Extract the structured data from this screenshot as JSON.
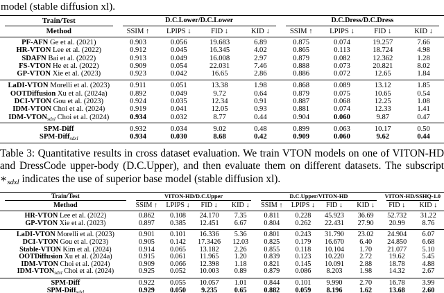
{
  "page": {
    "top_text": "model (stable diffusion xl)."
  },
  "caption": {
    "prefix": "Table 3: Quantitative results in cross dataset evaluation. We train VTON models on one of VITON-HD and DressCode upper-body (D.C.Upper), and then evaluate them on different datasets. The subscript ∗",
    "sub": "sdxl",
    "suffix": " indicates the use of superior base model (stable diffusion xl)."
  },
  "tables": [
    {
      "name": "same-dataset-evaluation",
      "train_test_label": "Train/Test",
      "method_label": "Method",
      "method_col_width": "26.5%",
      "groups": [
        {
          "label": "D.C.Lower/D.C.Lower",
          "metrics": [
            "SSIM ↑",
            "LPIPS ↓",
            "FID ↓",
            "KID ↓"
          ]
        },
        {
          "label": "D.C.Dress/D.C.Dress",
          "metrics": [
            "SSIM ↑",
            "LPIPS ↓",
            "FID ↓",
            "KID ↓"
          ]
        }
      ],
      "blocks": [
        {
          "rows": [
            {
              "method": "PF-AFN",
              "cite": "Ge et al. (2021)",
              "values": [
                "0.903",
                "0.056",
                "19.683",
                "6.89",
                "0.875",
                "0.074",
                "19.257",
                "7.66"
              ]
            },
            {
              "method": "HR-VTON",
              "cite": "Lee et al. (2022)",
              "values": [
                "0.912",
                "0.045",
                "16.345",
                "4.02",
                "0.865",
                "0.113",
                "18.724",
                "4.98"
              ]
            },
            {
              "method": "SDAFN",
              "cite": "Bai et al. (2022)",
              "values": [
                "0.913",
                "0.049",
                "16.008",
                "2.97",
                "0.879",
                "0.082",
                "12.362",
                "1.28"
              ]
            },
            {
              "method": "FS-VTON",
              "cite": "He et al. (2022)",
              "values": [
                "0.909",
                "0.054",
                "22.031",
                "7.46",
                "0.888",
                "0.073",
                "20.821",
                "8.02"
              ]
            },
            {
              "method": "GP-VTON",
              "cite": "Xie et al. (2023)",
              "values": [
                "0.923",
                "0.042",
                "16.65",
                "2.86",
                "0.886",
                "0.072",
                "12.65",
                "1.84"
              ]
            }
          ]
        },
        {
          "rows": [
            {
              "method": "LaDI-VTON",
              "cite": "Morelli et al. (2023)",
              "values": [
                "0.911",
                "0.051",
                "13.38",
                "1.98",
                "0.868",
                "0.089",
                "13.12",
                "1.85"
              ]
            },
            {
              "method": "OOTDiffusion",
              "cite": "Xu et al. (2024a)",
              "values": [
                "0.892",
                "0.049",
                "9.72",
                "0.64",
                "0.879",
                "0.075",
                "10.65",
                "0.54"
              ]
            },
            {
              "method": "DCI-VTON",
              "cite": "Gou et al. (2023)",
              "values": [
                "0.924",
                "0.035",
                "12.34",
                "0.91",
                "0.887",
                "0.068",
                "12.25",
                "1.08"
              ]
            },
            {
              "method": "IDM-VTON",
              "cite": "Choi et al. (2024)",
              "values": [
                "0.919",
                "0.041",
                "12.05",
                "0.93",
                "0.881",
                "0.074",
                "12.33",
                "1.41"
              ]
            },
            {
              "method": "IDM-VTON",
              "sub": "sdxl",
              "cite": "Choi et al. (2024)",
              "values": [
                "0.934",
                "0.032",
                "8.77",
                "0.44",
                "0.904",
                "0.060",
                "9.87",
                "0.47"
              ],
              "bold": [
                0,
                5
              ]
            }
          ]
        },
        {
          "rows": [
            {
              "method": "SPM-Diff",
              "cite": "",
              "values": [
                "0.932",
                "0.034",
                "9.02",
                "0.48",
                "0.899",
                "0.063",
                "10.17",
                "0.50"
              ]
            },
            {
              "method": "SPM-Diff",
              "sub": "sdxl",
              "cite": "",
              "values": [
                "0.934",
                "0.030",
                "8.68",
                "0.42",
                "0.909",
                "0.060",
                "9.62",
                "0.44"
              ],
              "bold": [
                0,
                1,
                2,
                3,
                4,
                5,
                6,
                7
              ]
            }
          ]
        }
      ]
    },
    {
      "name": "cross-dataset-evaluation",
      "train_test_label": "Train/Test",
      "method_label": "Method",
      "method_col_width": "29.5%",
      "groups": [
        {
          "label": "VITON-HD/D.C.Upper",
          "metrics": [
            "SSIM ↑",
            "LPIPS ↓",
            "FID ↓",
            "KID ↓"
          ]
        },
        {
          "label": "D.C.Upper/VITON-HD",
          "metrics": [
            "SSIM ↑",
            "LPIPS ↓",
            "FID ↓",
            "KID ↓"
          ]
        },
        {
          "label": "VITON-HD/SSHQ-1.0",
          "metrics": [
            "FID ↓",
            "KID ↓"
          ]
        }
      ],
      "blocks": [
        {
          "rows": [
            {
              "method": "HR-VTON",
              "cite": "Lee et al. (2022)",
              "values": [
                "0.862",
                "0.108",
                "24.170",
                "7.35",
                "0.811",
                "0.228",
                "45.923",
                "36.69",
                "52.732",
                "31.22"
              ]
            },
            {
              "method": "GP-VTON",
              "cite": "Xie et al. (2023)",
              "values": [
                "0.897",
                "0.385",
                "12.451",
                "6.67",
                "0.804",
                "0.262",
                "22.431",
                "27.90",
                "20.99",
                "8.76"
              ]
            }
          ]
        },
        {
          "rows": [
            {
              "method": "LaDI-VTON",
              "cite": "Morelli et al. (2023)",
              "values": [
                "0.901",
                "0.101",
                "16.336",
                "5.36",
                "0.801",
                "0.243",
                "31.790",
                "23.02",
                "24.904",
                "6.07"
              ]
            },
            {
              "method": "DCI-VTON",
              "cite": "Gou et al. (2023)",
              "values": [
                "0.905",
                "0.142",
                "17.3426",
                "12.03",
                "0.825",
                "0.179",
                "16.670",
                "6.40",
                "24.850",
                "6.68"
              ]
            },
            {
              "method": "Stable-VTON",
              "cite": "Kim et al. (2024)",
              "values": [
                "0.914",
                "0.065",
                "13.182",
                "2.26",
                "0.855",
                "0.118",
                "10.104",
                "1.70",
                "21.077",
                "5.10"
              ]
            },
            {
              "method": "OOTDiffusion",
              "cite": "Xu et al. (2024a)",
              "values": [
                "0.915",
                "0.061",
                "11.965",
                "1.20",
                "0.839",
                "0.123",
                "10.220",
                "2.72",
                "19.62",
                "5.45"
              ]
            },
            {
              "method": "IDM-VTON",
              "cite": "Choi et al. (2024)",
              "values": [
                "0.909",
                "0.066",
                "12.398",
                "1.18",
                "0.821",
                "0.145",
                "10.091",
                "2.88",
                "18.78",
                "4.88"
              ]
            },
            {
              "method": "IDM-VTON",
              "sub": "sdxl",
              "cite": "Choi et al. (2024)",
              "values": [
                "0.925",
                "0.052",
                "10.003",
                "0.89",
                "0.879",
                "0.086",
                "8.203",
                "1.98",
                "14.32",
                "2.67"
              ]
            }
          ]
        },
        {
          "rows": [
            {
              "method": "SPM-Diff",
              "cite": "",
              "values": [
                "0.922",
                "0.055",
                "10.057",
                "1.01",
                "0.844",
                "0.101",
                "9.990",
                "2.70",
                "16.78",
                "3.99"
              ]
            },
            {
              "method": "SPM-Diff",
              "sub": "sdxl",
              "cite": "",
              "values": [
                "0.929",
                "0.050",
                "9.235",
                "0.65",
                "0.882",
                "0.059",
                "8.196",
                "1.62",
                "13.68",
                "2.60"
              ],
              "bold": [
                0,
                1,
                2,
                3,
                4,
                5,
                6,
                7,
                8,
                9
              ]
            }
          ]
        }
      ]
    }
  ]
}
